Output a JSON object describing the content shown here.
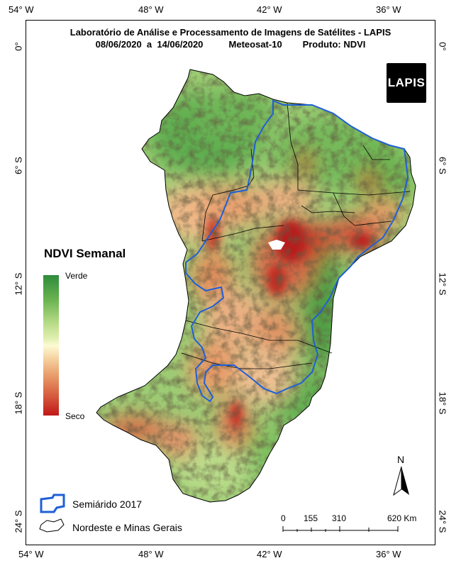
{
  "title": {
    "line1": "Laboratório de Análise e Processamento de Imagens de Satélites - LAPIS",
    "line2": "08/06/2020  a  14/06/2020          Meteosat-10        Produto: NDVI"
  },
  "logo_text": "LAPIS",
  "lon_labels": [
    "54° W",
    "48° W",
    "42° W",
    "36° W"
  ],
  "lat_labels": [
    "0°",
    "6° S",
    "12° S",
    "18° S",
    "24° S"
  ],
  "legend": {
    "title": "NDVI Semanal",
    "top_label": "Verde",
    "bottom_label": "Seco",
    "colors": {
      "green": "#2e8b3c",
      "neutral": "#fdfbd4",
      "red": "#c01818"
    }
  },
  "layers": {
    "semiarido": "Semiárido 2017",
    "nordeste": "Nordeste e Minas Gerais",
    "semiarido_color": "#1f5fd6"
  },
  "scale_bar": {
    "ticks": [
      "0",
      "155",
      "310",
      "620 Km"
    ]
  },
  "north_label": "N"
}
